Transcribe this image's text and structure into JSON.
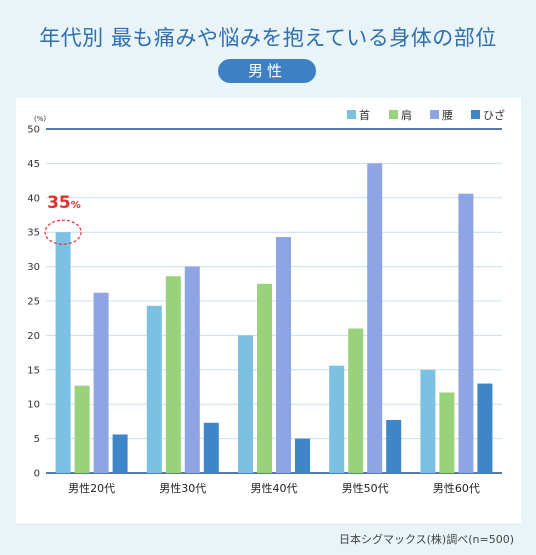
{
  "title": "年代別 最も痛みや悩みを抱えている身体の部位",
  "badge": "男性",
  "source": "日本シグマックス(株)調べ(n=500)",
  "highlight": {
    "value": "35",
    "unit": "%"
  },
  "colors": {
    "neck": "#7cc0e3",
    "shoulder": "#9ad27c",
    "waist": "#8fa5e3",
    "knee": "#3f86c8",
    "highlight": "#e03030",
    "title": "#2f6fae",
    "axis": "#1f4e8c",
    "grid": "#c9dff0"
  },
  "chart_data": {
    "type": "bar",
    "ylabel": "(%)",
    "ylim": [
      0,
      50
    ],
    "yticks": [
      0,
      5,
      10,
      15,
      20,
      25,
      30,
      35,
      40,
      45,
      50
    ],
    "grid": true,
    "legend_position": "top-right",
    "categories": [
      "男性20代",
      "男性30代",
      "男性40代",
      "男性50代",
      "男性60代"
    ],
    "series": [
      {
        "name": "首",
        "color": "#7cc0e3",
        "values": [
          35.0,
          24.3,
          20.0,
          15.6,
          15.0
        ]
      },
      {
        "name": "肩",
        "color": "#9ad27c",
        "values": [
          12.7,
          28.6,
          27.5,
          21.0,
          11.7
        ]
      },
      {
        "name": "腰",
        "color": "#8fa5e3",
        "values": [
          26.2,
          30.0,
          34.3,
          45.0,
          40.6
        ]
      },
      {
        "name": "ひざ",
        "color": "#3f86c8",
        "values": [
          5.6,
          7.3,
          5.0,
          7.7,
          13.0
        ]
      }
    ]
  }
}
